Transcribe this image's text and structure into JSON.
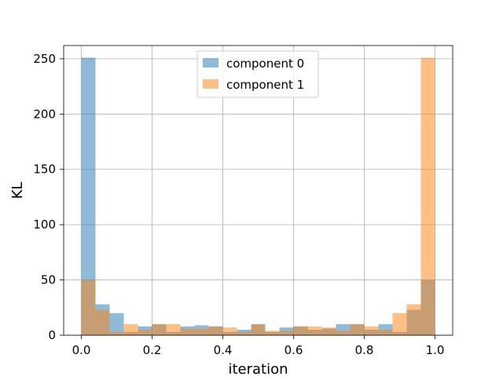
{
  "chart_data": {
    "type": "bar",
    "title": "",
    "xlabel": "iteration",
    "ylabel": "KL",
    "xlim": [
      -0.05,
      1.05
    ],
    "ylim": [
      0,
      262
    ],
    "x_ticks": [
      "0.0",
      "0.2",
      "0.4",
      "0.6",
      "0.8",
      "1.0"
    ],
    "y_ticks": [
      "0",
      "50",
      "100",
      "150",
      "200",
      "250"
    ],
    "grid": true,
    "legend": "top-center",
    "bin_edges": [
      0.0,
      0.04,
      0.08,
      0.12,
      0.16,
      0.2,
      0.24,
      0.28,
      0.32,
      0.36,
      0.4,
      0.44,
      0.48,
      0.52,
      0.56,
      0.6,
      0.64,
      0.68,
      0.72,
      0.76,
      0.8,
      0.84,
      0.88,
      0.92,
      0.96,
      1.0
    ],
    "series": [
      {
        "name": "component 0",
        "color": "#1f77b4",
        "values": [
          251,
          28,
          20,
          3,
          8,
          10,
          3,
          8,
          9,
          8,
          3,
          5,
          10,
          3,
          7,
          8,
          5,
          6,
          10,
          10,
          5,
          10,
          3,
          23,
          50
        ]
      },
      {
        "name": "component 1",
        "color": "#ff7f0e",
        "values": [
          50,
          23,
          3,
          10,
          5,
          10,
          10,
          6,
          6,
          8,
          7,
          3,
          10,
          4,
          4,
          8,
          8,
          7,
          4,
          10,
          8,
          5,
          20,
          28,
          251
        ]
      }
    ]
  }
}
